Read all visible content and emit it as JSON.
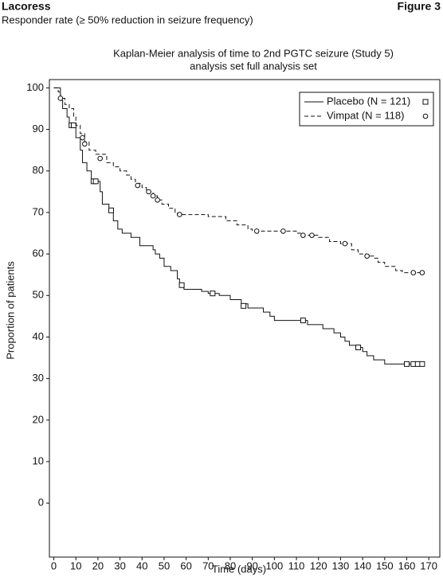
{
  "header": {
    "brand": "Lacoress",
    "figure": "Figure 3",
    "subtitle": "Responder rate (≥ 50% reduction in seizure frequency)"
  },
  "chart_data": {
    "type": "line",
    "step": true,
    "title": "Kaplan-Meier analysis of time to 2nd PGTC seizure (Study 5)",
    "subtitle": "analysis set  full analysis set",
    "x_label": "Time (days)",
    "y_label": "Proportion of patients",
    "xlim": [
      -2,
      175
    ],
    "ylim": [
      -13,
      102
    ],
    "xticks": [
      0,
      10,
      20,
      30,
      40,
      50,
      60,
      70,
      80,
      90,
      100,
      110,
      120,
      130,
      140,
      150,
      160,
      170
    ],
    "yticks": [
      0,
      10,
      20,
      30,
      40,
      50,
      60,
      70,
      80,
      90,
      100
    ],
    "legend": "upper right",
    "series": [
      {
        "name": "Placebo (N = 121)",
        "color": "#111111",
        "dash": false,
        "marker": "square",
        "x": [
          0,
          3,
          4,
          6,
          7,
          10,
          12,
          13,
          15,
          17,
          21,
          22,
          25,
          27,
          29,
          31,
          35,
          39,
          45,
          46,
          48,
          50,
          53,
          56,
          57,
          59,
          67,
          70,
          75,
          80,
          85,
          88,
          95,
          98,
          100,
          115,
          122,
          127,
          130,
          132,
          134,
          137,
          140,
          142,
          145,
          150,
          168
        ],
        "values": [
          100,
          97,
          95,
          93,
          91,
          88,
          85,
          82,
          80,
          77.5,
          75,
          72,
          71,
          68,
          66,
          65,
          64,
          62,
          61,
          60,
          59,
          57,
          56,
          54,
          53,
          51.5,
          51,
          50.5,
          50,
          49,
          48,
          47,
          46,
          45,
          44,
          43,
          42,
          41,
          40,
          39,
          38,
          37.5,
          36.5,
          35.5,
          34.5,
          33.5,
          33.5
        ],
        "censor_x": [
          8,
          9,
          18,
          19,
          26,
          58,
          72,
          86,
          113,
          138,
          160,
          163,
          165,
          167
        ],
        "censor_values": [
          91,
          91,
          77.5,
          77.5,
          70.5,
          52.5,
          50.5,
          47.5,
          44,
          37.5,
          33.5,
          33.5,
          33.5,
          33.5
        ]
      },
      {
        "name": "Vimpat (N = 118)",
        "color": "#111111",
        "dash": true,
        "marker": "circle",
        "x": [
          0,
          2,
          3,
          5,
          7,
          9,
          10,
          12,
          14,
          16,
          19,
          24,
          27,
          30,
          33,
          35,
          37,
          40,
          42,
          45,
          47,
          49,
          52,
          55,
          56,
          70,
          78,
          83,
          88,
          90,
          110,
          112,
          120,
          125,
          130,
          135,
          138,
          142,
          145,
          147,
          150,
          155,
          158,
          168
        ],
        "values": [
          100,
          99,
          97.5,
          96,
          95,
          93,
          91,
          89,
          87,
          85,
          84,
          82,
          81,
          80,
          79,
          78,
          77,
          76,
          75,
          74,
          73,
          72,
          71,
          70,
          69.5,
          69,
          68,
          67,
          66,
          65.5,
          65,
          64.5,
          64,
          63,
          62.5,
          61,
          60,
          59.5,
          59,
          58,
          57,
          56,
          55.5,
          55.5
        ],
        "censor_x": [
          3,
          13,
          14,
          21,
          38,
          43,
          45,
          47,
          57,
          92,
          104,
          113,
          117,
          132,
          142,
          163,
          167
        ],
        "censor_values": [
          97.5,
          88,
          86.5,
          83,
          76.5,
          75,
          74,
          73,
          69.5,
          65.5,
          65.5,
          64.5,
          64.5,
          62.5,
          59.5,
          55.5,
          55.5
        ]
      }
    ]
  }
}
